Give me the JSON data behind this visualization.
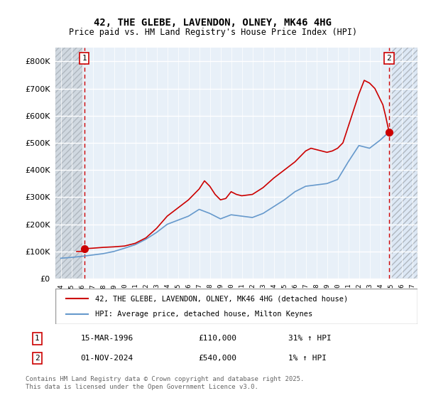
{
  "title": "42, THE GLEBE, LAVENDON, OLNEY, MK46 4HG",
  "subtitle": "Price paid vs. HM Land Registry's House Price Index (HPI)",
  "ylim": [
    0,
    850000
  ],
  "xlim_year": [
    1993.5,
    2027.5
  ],
  "yticks": [
    0,
    100000,
    200000,
    300000,
    400000,
    500000,
    600000,
    700000,
    800000
  ],
  "ytick_labels": [
    "£0",
    "£100K",
    "£200K",
    "£300K",
    "£400K",
    "£500K",
    "£600K",
    "£700K",
    "£800K"
  ],
  "background_chart": "#e8f0f8",
  "background_hatched": "#d0d8e0",
  "grid_color": "#ffffff",
  "red_line_color": "#cc0000",
  "blue_line_color": "#6699cc",
  "marker_color": "#cc0000",
  "dashed_line_color": "#cc0000",
  "point1_year": 1996.21,
  "point1_value": 110000,
  "point2_year": 2024.83,
  "point2_value": 540000,
  "legend_label_red": "42, THE GLEBE, LAVENDON, OLNEY, MK46 4HG (detached house)",
  "legend_label_blue": "HPI: Average price, detached house, Milton Keynes",
  "footnote1_label": "1",
  "footnote1_date": "15-MAR-1996",
  "footnote1_price": "£110,000",
  "footnote1_hpi": "31% ↑ HPI",
  "footnote2_label": "2",
  "footnote2_date": "01-NOV-2024",
  "footnote2_price": "£540,000",
  "footnote2_hpi": "1% ↑ HPI",
  "copyright": "Contains HM Land Registry data © Crown copyright and database right 2025.\nThis data is licensed under the Open Government Licence v3.0.",
  "hatch_end_year": 1996.0,
  "future_start_year": 2025.0,
  "red_line_data_x": [
    1995.5,
    1996.0,
    1996.21,
    1997.0,
    1998.0,
    1999.0,
    2000.0,
    2001.0,
    2002.0,
    2003.0,
    2004.0,
    2005.0,
    2006.0,
    2007.0,
    2007.5,
    2008.0,
    2008.5,
    2009.0,
    2009.5,
    2010.0,
    2010.5,
    2011.0,
    2012.0,
    2013.0,
    2014.0,
    2015.0,
    2016.0,
    2016.5,
    2017.0,
    2017.5,
    2018.0,
    2018.5,
    2019.0,
    2019.5,
    2020.0,
    2020.5,
    2021.0,
    2021.5,
    2022.0,
    2022.5,
    2023.0,
    2023.5,
    2023.75,
    2024.0,
    2024.25,
    2024.5,
    2024.83
  ],
  "red_line_data_y": [
    100000,
    100000,
    110000,
    112000,
    115000,
    117000,
    120000,
    130000,
    150000,
    185000,
    230000,
    260000,
    290000,
    330000,
    360000,
    340000,
    310000,
    290000,
    295000,
    320000,
    310000,
    305000,
    310000,
    335000,
    370000,
    400000,
    430000,
    450000,
    470000,
    480000,
    475000,
    470000,
    465000,
    470000,
    480000,
    500000,
    560000,
    620000,
    680000,
    730000,
    720000,
    700000,
    680000,
    660000,
    640000,
    600000,
    540000
  ],
  "blue_line_data_x": [
    1994.0,
    1995.0,
    1996.0,
    1997.0,
    1998.0,
    1999.0,
    2000.0,
    2001.0,
    2002.0,
    2003.0,
    2004.0,
    2005.0,
    2006.0,
    2007.0,
    2008.0,
    2009.0,
    2010.0,
    2011.0,
    2012.0,
    2013.0,
    2014.0,
    2015.0,
    2016.0,
    2017.0,
    2018.0,
    2019.0,
    2020.0,
    2021.0,
    2022.0,
    2023.0,
    2024.0,
    2024.83
  ],
  "blue_line_data_y": [
    75000,
    78000,
    82000,
    87000,
    92000,
    100000,
    112000,
    125000,
    145000,
    170000,
    200000,
    215000,
    230000,
    255000,
    240000,
    220000,
    235000,
    230000,
    225000,
    240000,
    265000,
    290000,
    320000,
    340000,
    345000,
    350000,
    365000,
    430000,
    490000,
    480000,
    510000,
    540000
  ]
}
